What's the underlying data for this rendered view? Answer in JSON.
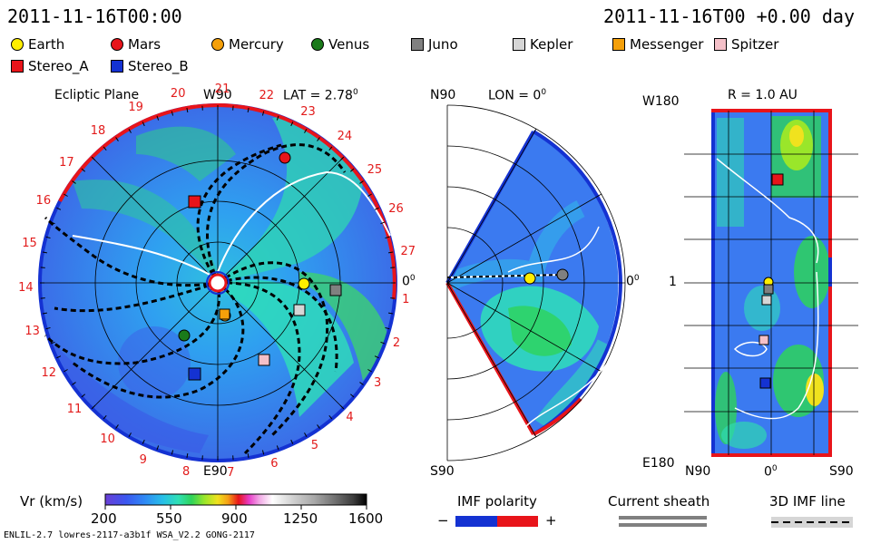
{
  "header": {
    "left_time": "2011-11-16T00:00",
    "right_time": "2011-11-16T00 +0.00 day"
  },
  "legend": [
    {
      "label": "Earth",
      "color": "#ffee00",
      "shape": "circle"
    },
    {
      "label": "Mars",
      "color": "#e8141a",
      "shape": "circle"
    },
    {
      "label": "Mercury",
      "color": "#f5a00a",
      "shape": "circle"
    },
    {
      "label": "Venus",
      "color": "#1a7a1a",
      "shape": "circle"
    },
    {
      "label": "Juno",
      "color": "#808080",
      "shape": "square"
    },
    {
      "label": "Kepler",
      "color": "#d6d6d6",
      "shape": "square"
    },
    {
      "label": "Messenger",
      "color": "#f5a00a",
      "shape": "square"
    },
    {
      "label": "Spitzer",
      "color": "#f4c0c8",
      "shape": "square"
    },
    {
      "label": "Stereo_A",
      "color": "#e8141a",
      "shape": "square"
    },
    {
      "label": "Stereo_B",
      "color": "#1432d2",
      "shape": "square"
    }
  ],
  "panel1": {
    "title": "Ecliptic Plane",
    "lat": "LAT = 2.78",
    "lat_sup": "0",
    "top_label": "W90",
    "bottom_label": "E90",
    "right_label": "0",
    "right_sup": "0",
    "carrington_numbers": [
      "1",
      "2",
      "3",
      "4",
      "5",
      "6",
      "7",
      "8",
      "9",
      "10",
      "11",
      "12",
      "13",
      "14",
      "15",
      "16",
      "17",
      "18",
      "19",
      "20",
      "21",
      "22",
      "23",
      "24",
      "25",
      "26",
      "27"
    ]
  },
  "panel2": {
    "top_left": "N90",
    "title": "LON = 0",
    "title_sup": "0",
    "bottom_left": "S90",
    "right_label": "0",
    "right_sup": "0"
  },
  "panel3": {
    "title": "R = 1.0 AU",
    "top_left": "W180",
    "mid_left": "1",
    "bottom_left": "E180",
    "bottom_n": "N90",
    "bottom_mid": "0",
    "bottom_mid_sup": "0",
    "bottom_s": "S90"
  },
  "colorbar": {
    "title": "Vr (km/s)",
    "ticks": [
      "200",
      "550",
      "900",
      "1250",
      "1600"
    ],
    "colors": [
      "#6a3fd6",
      "#3b57f0",
      "#2f88f5",
      "#27bfe8",
      "#2fe0b5",
      "#2ed35a",
      "#9ae62a",
      "#f0e21e",
      "#f5a015",
      "#e8141a",
      "#e83cc8",
      "#f2a9e6",
      "#ffffff",
      "#d0d0d0",
      "#a8a8a8",
      "#707070",
      "#3c3c3c",
      "#000000"
    ]
  },
  "imf": {
    "title": "IMF polarity",
    "minus": "−",
    "plus": "+"
  },
  "sheath": {
    "title": "Current sheath"
  },
  "imfline": {
    "title": "3D IMF line"
  },
  "footer": {
    "left": "ENLIL-2.7 lowres-2117-a3b1f WSA_V2.2 GONG-2117"
  }
}
